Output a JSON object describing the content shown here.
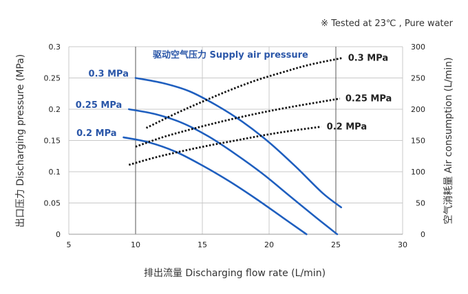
{
  "note": "※  Tested at  23℃ , Pure water",
  "chart_data": {
    "type": "line",
    "xlabel": "排出流量 Discharging flow rate (L/min)",
    "ylabel": "出口压力 Discharging pressure (MPa)",
    "y2label": "空气消耗量 Air consumption (L/min)",
    "legend_title": "驱动空气压力 Supply air pressure",
    "xlim": [
      5,
      30
    ],
    "ylim": [
      0,
      0.3
    ],
    "y2lim": [
      0,
      300
    ],
    "x_ticks": [
      "5",
      "10",
      "15",
      "20",
      "25",
      "30"
    ],
    "y_ticks": [
      "0",
      "0.05",
      "0.1",
      "0.15",
      "0.2",
      "0.25",
      "0.3"
    ],
    "y2_ticks": [
      "0",
      "50",
      "100",
      "150",
      "200",
      "250",
      "300"
    ],
    "grid": true,
    "colors": {
      "pressure": "#1f5fbf",
      "air": "#111111"
    },
    "pressure_series": [
      {
        "name": "0.3 MPa",
        "x": [
          10,
          12,
          14,
          16,
          18,
          20,
          22,
          24,
          25.4
        ],
        "y": [
          0.25,
          0.242,
          0.229,
          0.207,
          0.18,
          0.147,
          0.108,
          0.066,
          0.043
        ]
      },
      {
        "name": "0.25 MPa",
        "x": [
          9.5,
          11.5,
          13.5,
          15.5,
          17.5,
          19.5,
          21.5,
          23.5,
          25.1
        ],
        "y": [
          0.2,
          0.192,
          0.178,
          0.156,
          0.128,
          0.097,
          0.062,
          0.027,
          0.0
        ]
      },
      {
        "name": "0.2 MPa",
        "x": [
          9.1,
          11,
          13,
          15,
          17,
          19,
          21,
          22.8
        ],
        "y": [
          0.155,
          0.147,
          0.132,
          0.11,
          0.085,
          0.057,
          0.027,
          0.0
        ]
      }
    ],
    "air_series": [
      {
        "name": "0.3 MPa",
        "x": [
          10.8,
          13,
          15,
          17,
          19,
          21,
          23,
          25.5
        ],
        "y": [
          170,
          193,
          212,
          230,
          246,
          259,
          271,
          282
        ]
      },
      {
        "name": "0.25 MPa",
        "x": [
          10,
          12,
          14,
          16,
          18,
          20,
          22,
          25.3
        ],
        "y": [
          140,
          155,
          167,
          178,
          188,
          197,
          205,
          217
        ]
      },
      {
        "name": "0.2 MPa",
        "x": [
          9.5,
          11.5,
          13.5,
          15.5,
          17.5,
          19.5,
          21.5,
          23.9
        ],
        "y": [
          111,
          123,
          133,
          142,
          150,
          158,
          165,
          172
        ]
      }
    ]
  }
}
